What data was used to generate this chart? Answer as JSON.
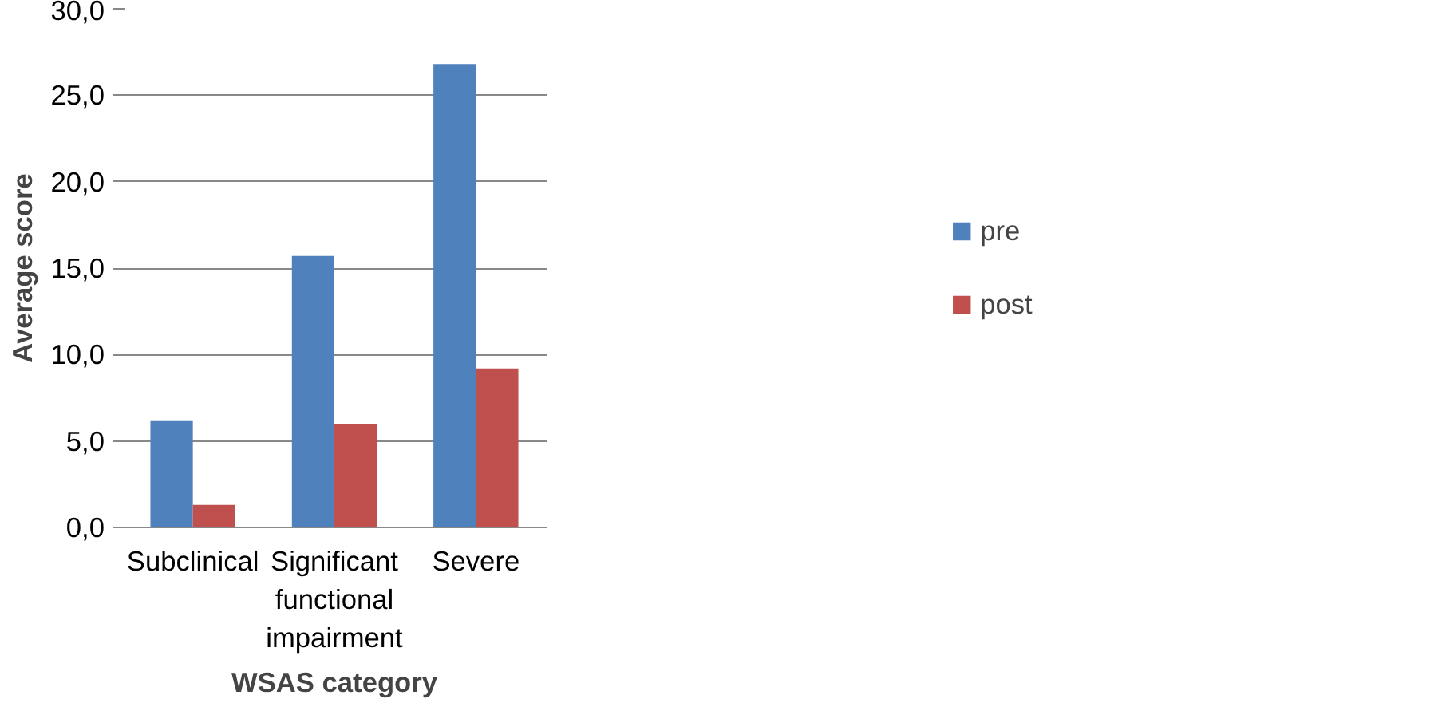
{
  "chart_data": {
    "type": "bar",
    "xlabel": "WSAS category",
    "ylabel": "Average score",
    "categories": [
      "Subclinical",
      "Significant functional impairment",
      "Severe"
    ],
    "series": [
      {
        "name": "pre",
        "color": "#4f81bd",
        "values": [
          6.2,
          15.7,
          26.8
        ]
      },
      {
        "name": "post",
        "color": "#c0504d",
        "values": [
          1.3,
          6.0,
          9.2
        ]
      }
    ],
    "ylim": [
      0,
      30
    ],
    "yticks": [
      {
        "value": 0,
        "label": "0,0"
      },
      {
        "value": 5,
        "label": "5,0"
      },
      {
        "value": 10,
        "label": "10,0"
      },
      {
        "value": 15,
        "label": "15,0"
      },
      {
        "value": 20,
        "label": "20,0"
      },
      {
        "value": 25,
        "label": "25,0"
      },
      {
        "value": 30,
        "label": "30,0"
      }
    ],
    "grid": "y",
    "legend": "right"
  }
}
